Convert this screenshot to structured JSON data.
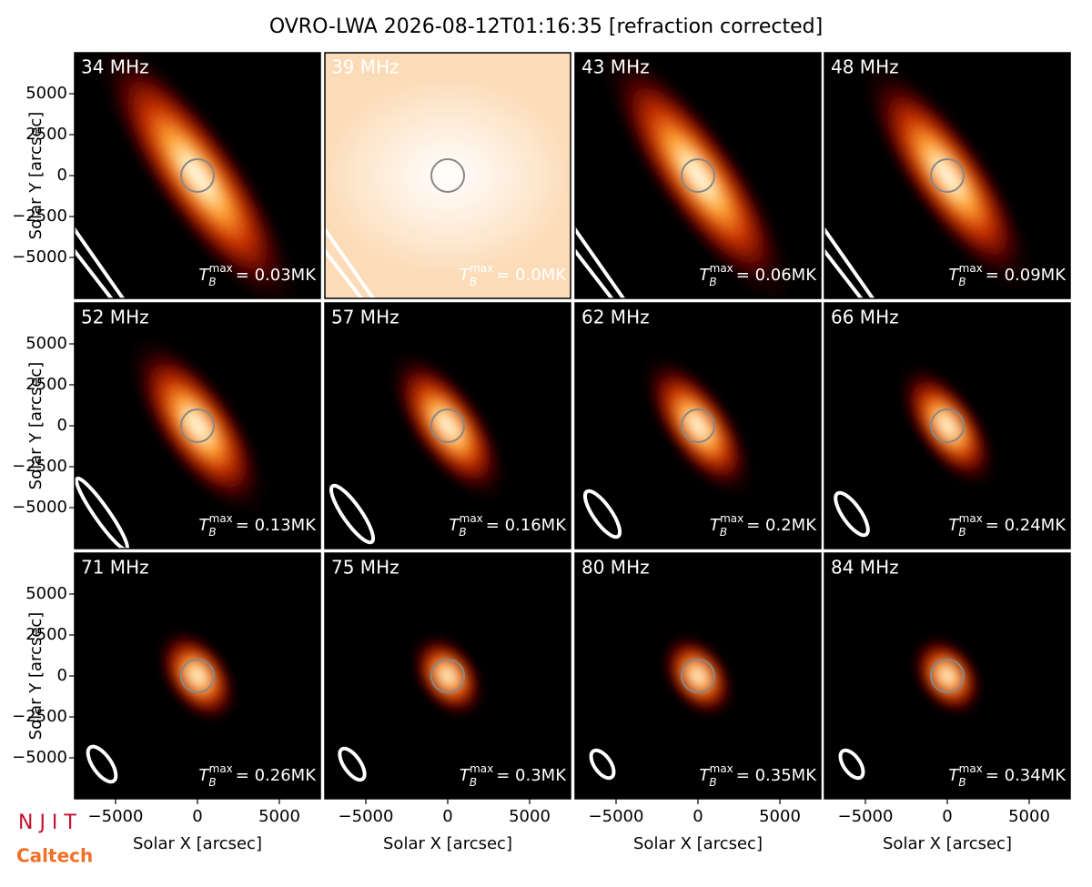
{
  "chart_data": {
    "type": "image-grid",
    "title": "OVRO-LWA 2026-08-12T01:16:35 [refraction corrected]",
    "xlabel": "Solar X [arcsec]",
    "ylabel": "Solar Y [arcsec]",
    "xlim": [
      -7500,
      7500
    ],
    "ylim": [
      -7500,
      7500
    ],
    "xticks": [
      {
        "value": -5000,
        "label": "−5000"
      },
      0,
      5000
    ],
    "yticks": [
      {
        "value": -5000,
        "label": "−5000"
      },
      {
        "value": -2500,
        "label": "−2500"
      },
      0,
      2500,
      5000
    ],
    "annotation_symbol": "T",
    "annotation_sub": "B",
    "annotation_sup": "max",
    "panels": [
      {
        "label": "34 MHz",
        "annotation": "= 0.03MK"
      },
      {
        "label": "39 MHz",
        "annotation": "= 0.0MK"
      },
      {
        "label": "43 MHz",
        "annotation": "= 0.06MK"
      },
      {
        "label": "48 MHz",
        "annotation": "= 0.09MK"
      },
      {
        "label": "52 MHz",
        "annotation": "= 0.13MK"
      },
      {
        "label": "57 MHz",
        "annotation": "= 0.16MK"
      },
      {
        "label": "62 MHz",
        "annotation": "= 0.2MK"
      },
      {
        "label": "66 MHz",
        "annotation": "= 0.24MK"
      },
      {
        "label": "71 MHz",
        "annotation": "= 0.26MK"
      },
      {
        "label": "75 MHz",
        "annotation": "= 0.3MK"
      },
      {
        "label": "80 MHz",
        "annotation": "= 0.35MK"
      },
      {
        "label": "84 MHz",
        "annotation": "= 0.34MK"
      }
    ]
  },
  "logos": [
    "N J I T",
    "Caltech"
  ]
}
